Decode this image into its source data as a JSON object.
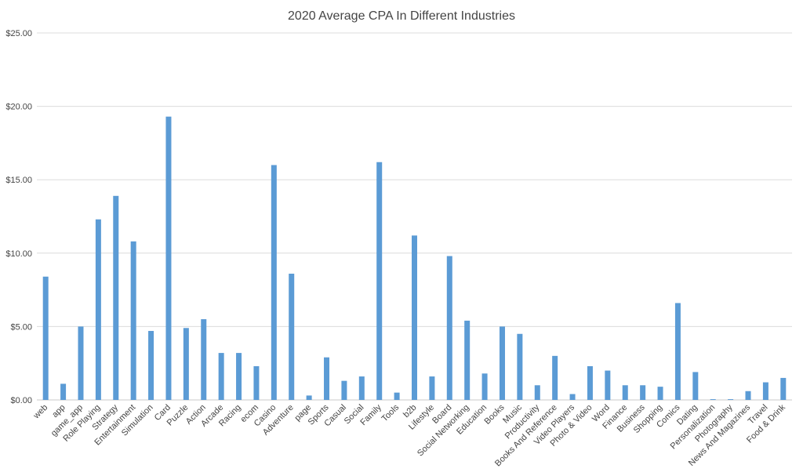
{
  "chart_data": {
    "type": "bar",
    "title": "2020 Average CPA In Different Industries",
    "xlabel": "",
    "ylabel": "",
    "ylim": [
      0,
      25
    ],
    "yticks": [
      "$0.00",
      "$5.00",
      "$10.00",
      "$15.00",
      "$20.00",
      "$25.00"
    ],
    "ytick_values": [
      0,
      5,
      10,
      15,
      20,
      25
    ],
    "grid": true,
    "bar_color": "#5b9bd5",
    "categories": [
      "web",
      "app",
      "game_app",
      "Role Playing",
      "Strategy",
      "Entertainment",
      "Simulation",
      "Card",
      "Puzzle",
      "Action",
      "Arcade",
      "Racing",
      "ecom",
      "Casino",
      "Adventure",
      "page",
      "Sports",
      "Casual",
      "Social",
      "Family",
      "Tools",
      "b2b",
      "Lifestyle",
      "Board",
      "Social Networking",
      "Education",
      "Books",
      "Music",
      "Productivity",
      "Books And Reference",
      "Video Players",
      "Photo & Video",
      "Word",
      "Finance",
      "Business",
      "Shopping",
      "Comics",
      "Dating",
      "Personalization",
      "Photography",
      "News And Magazines",
      "Travel",
      "Food & Drink"
    ],
    "values": [
      8.4,
      1.1,
      5.0,
      12.3,
      13.9,
      10.8,
      4.7,
      19.3,
      4.9,
      5.5,
      3.2,
      3.2,
      2.3,
      16.0,
      8.6,
      0.3,
      2.9,
      1.3,
      1.6,
      16.2,
      0.5,
      11.2,
      1.6,
      9.8,
      5.4,
      1.8,
      5.0,
      4.5,
      1.0,
      3.0,
      0.4,
      2.3,
      2.0,
      1.0,
      1.0,
      0.9,
      6.6,
      1.9,
      0.05,
      0.05,
      0.6,
      1.2,
      1.5
    ]
  }
}
